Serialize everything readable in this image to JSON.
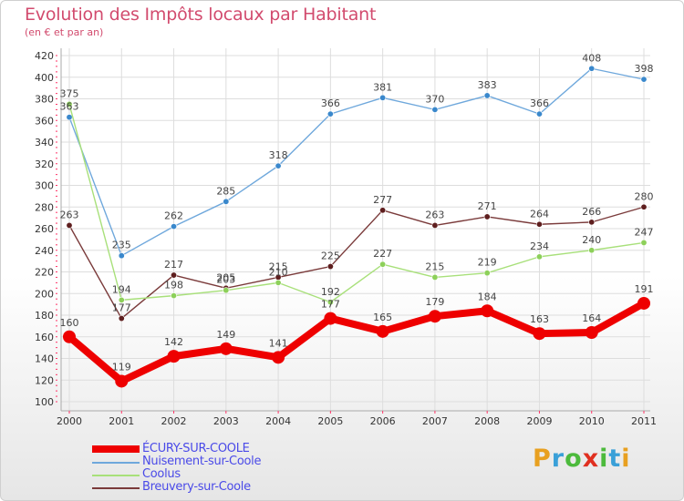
{
  "title": "Evolution des Impôts locaux par Habitant",
  "subtitle": "(en € et par an)",
  "logo": {
    "letters": [
      "P",
      "r",
      "o",
      "x",
      "i",
      "t",
      "i"
    ]
  },
  "colors": {
    "title": "#d24b6e",
    "grid": "#dddddd",
    "axis_ticks": "#ff3366",
    "legend_text": "#4a4ae8",
    "logo": [
      "#e8a020",
      "#3aa0d8",
      "#4cba3c",
      "#e03020",
      "#4cba3c",
      "#3aa0d8",
      "#e8a020"
    ]
  },
  "chart_data": {
    "type": "line",
    "title": "Evolution des Impôts locaux par Habitant",
    "subtitle": "(en € et par an)",
    "xlabel": "",
    "ylabel": "",
    "x": [
      "2000",
      "2001",
      "2002",
      "2003",
      "2004",
      "2005",
      "2006",
      "2007",
      "2008",
      "2009",
      "2010",
      "2011"
    ],
    "ylim": [
      100,
      420
    ],
    "yticks": [
      100,
      120,
      140,
      160,
      180,
      200,
      220,
      240,
      260,
      280,
      300,
      320,
      340,
      360,
      380,
      400,
      420
    ],
    "grid": true,
    "legend_position": "bottom-left",
    "series": [
      {
        "name": "Nuisement-sur-Coole",
        "color": "#6fa8dc",
        "marker": "#3a88cc",
        "bold": false,
        "values": [
          363,
          235,
          262,
          285,
          318,
          366,
          381,
          370,
          383,
          366,
          408,
          398
        ]
      },
      {
        "name": "Breuvery-sur-Coole",
        "color": "#7a3a3a",
        "marker": "#5e1e1e",
        "bold": false,
        "values": [
          263,
          177,
          217,
          205,
          215,
          225,
          277,
          263,
          271,
          264,
          266,
          280
        ]
      },
      {
        "name": "Coolus",
        "color": "#a8e07a",
        "marker": "#8dd05a",
        "bold": false,
        "values": [
          375,
          194,
          198,
          203,
          210,
          192,
          227,
          215,
          219,
          234,
          240,
          247
        ]
      },
      {
        "name": "ÉCURY-SUR-COOLE",
        "color": "#ee0000",
        "marker": "#ee0000",
        "bold": true,
        "values": [
          160,
          119,
          142,
          149,
          141,
          177,
          165,
          179,
          184,
          163,
          164,
          191
        ]
      }
    ],
    "legend_order": [
      "ÉCURY-SUR-COOLE",
      "Nuisement-sur-Coole",
      "Coolus",
      "Breuvery-sur-Coole"
    ]
  }
}
